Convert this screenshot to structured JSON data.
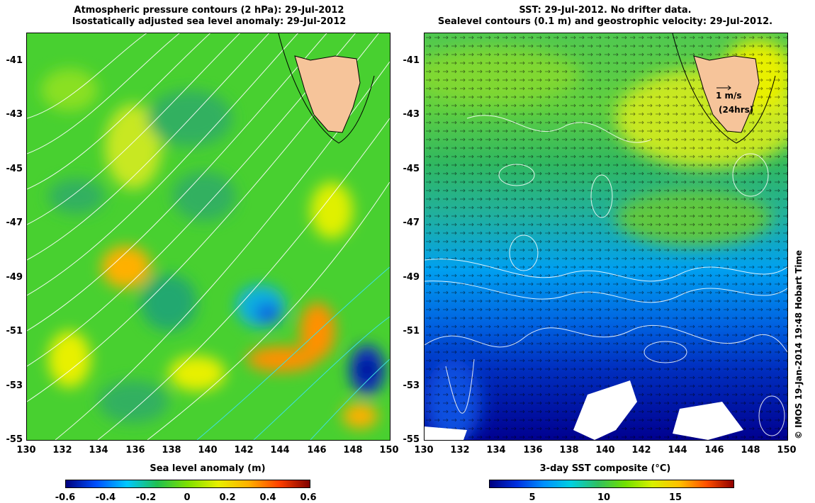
{
  "left_panel": {
    "title_line1": "Atmospheric pressure contours (2 hPa): 29-Jul-2012",
    "title_line2": "Isostatically adjusted sea level anomaly: 29-Jul-2012",
    "y_ticks": [
      "-41",
      "-43",
      "-45",
      "-47",
      "-49",
      "-51",
      "-53",
      "-55"
    ],
    "x_ticks": [
      "130",
      "132",
      "134",
      "136",
      "138",
      "140",
      "142",
      "144",
      "146",
      "148",
      "150"
    ],
    "colorbar_label": "Sea level anomaly (m)",
    "colorbar_ticks": [
      "-0.6",
      "-0.4",
      "-0.2",
      "0",
      "0.2",
      "0.4",
      "0.6"
    ]
  },
  "right_panel": {
    "title_line1": "SST: 29-Jul-2012. No drifter data.",
    "title_line2": "Sealevel contours (0.1 m) and geostrophic velocity: 29-Jul-2012.",
    "y_ticks": [
      "-41",
      "-43",
      "-45",
      "-47",
      "-49",
      "-51",
      "-53",
      "-55"
    ],
    "x_ticks": [
      "130",
      "132",
      "134",
      "136",
      "138",
      "140",
      "142",
      "144",
      "146",
      "148",
      "150"
    ],
    "scale_label": "1 m/s",
    "scale_label2": "(24hrs)",
    "colorbar_label": "3-day SST composite (°C)",
    "colorbar_ticks": [
      "5",
      "10",
      "15"
    ],
    "credit": "© IMOS 19-Jan-2014 19:48 Hobart Time"
  },
  "colors": {
    "land": "#f6c49a",
    "sla_ramp": [
      "#00007f",
      "#0050ff",
      "#00c8ff",
      "#20c050",
      "#7ee000",
      "#e8f000",
      "#ffb000",
      "#ff4000",
      "#800000"
    ],
    "sst_ramp": [
      "#000080",
      "#0030e0",
      "#0090ff",
      "#00d0e0",
      "#30c060",
      "#70e000",
      "#d8f000",
      "#ffc000",
      "#ff5000",
      "#900000"
    ]
  }
}
